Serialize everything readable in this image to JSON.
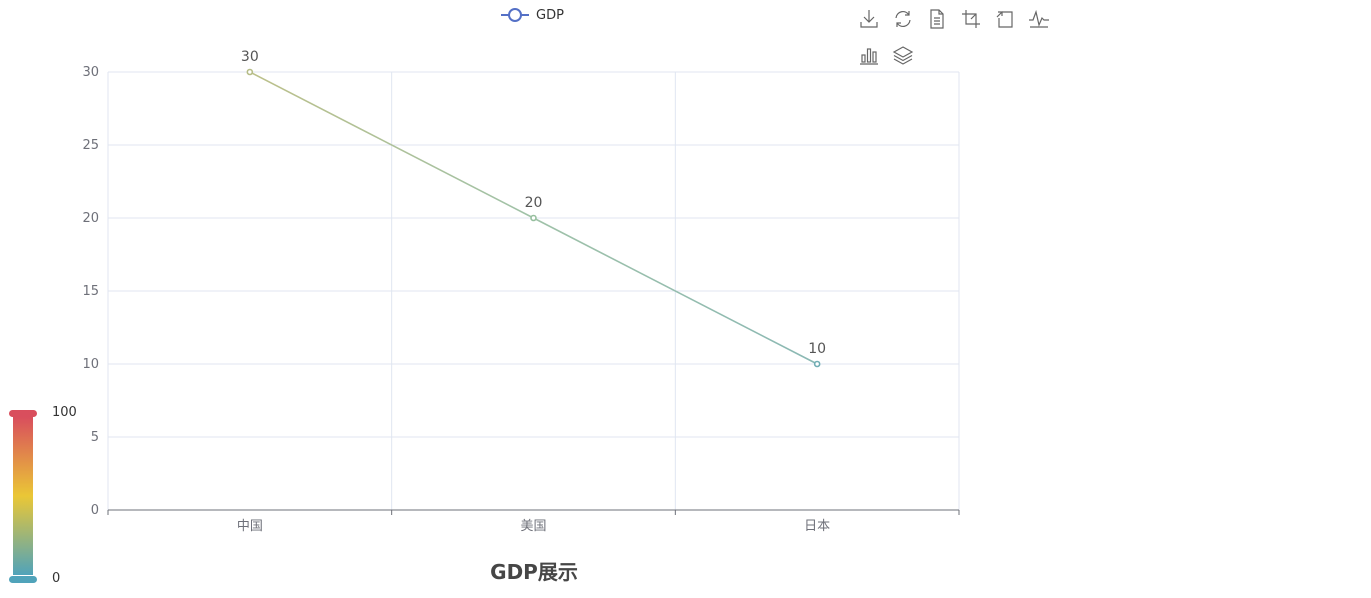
{
  "chart_data": {
    "type": "line",
    "title": "GDP展示",
    "categories": [
      "中国",
      "美国",
      "日本"
    ],
    "series": [
      {
        "name": "GDP",
        "values": [
          30,
          20,
          10
        ]
      }
    ],
    "ylim": [
      0,
      30
    ],
    "yticks": [
      0,
      5,
      10,
      15,
      20,
      25,
      30
    ],
    "grid": true,
    "legend": "top-center",
    "data_labels": true,
    "visual_map": {
      "min": "0",
      "max": "100",
      "colors": [
        "#50a3ba",
        "#eac736",
        "#d94e5d"
      ]
    }
  },
  "legend": {
    "label": "GDP",
    "color": "#5470c6"
  },
  "toolbox": {
    "icons": [
      "download-icon",
      "refresh-icon",
      "data-view-icon",
      "zoom-icon",
      "zoom-reset-icon",
      "line-chart-icon",
      "bar-chart-icon",
      "stack-icon"
    ]
  }
}
